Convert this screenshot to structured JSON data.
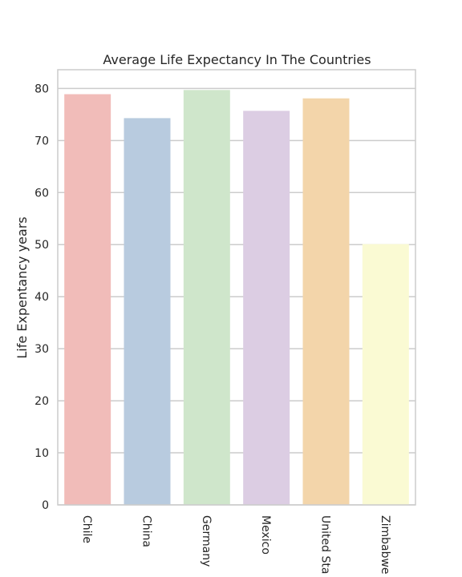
{
  "chart_data": {
    "type": "bar",
    "title": "Average Life Expectancy In The Countries",
    "xlabel": "",
    "ylabel": "Life Expentancy years",
    "categories": [
      "Chile",
      "China",
      "Germany",
      "Mexico",
      "United Sta",
      "Zimbabwe"
    ],
    "values": [
      78.9,
      74.3,
      79.7,
      75.7,
      78.1,
      50.1
    ],
    "colors": [
      "#f1bcb9",
      "#b8cbdf",
      "#cfe6cb",
      "#dccde3",
      "#f3d5aa",
      "#fafad3"
    ],
    "yticks": [
      0,
      10,
      20,
      30,
      40,
      50,
      60,
      70,
      80
    ],
    "ylim": [
      0,
      83.6
    ],
    "grid": true,
    "xtick_rotation": 90
  }
}
